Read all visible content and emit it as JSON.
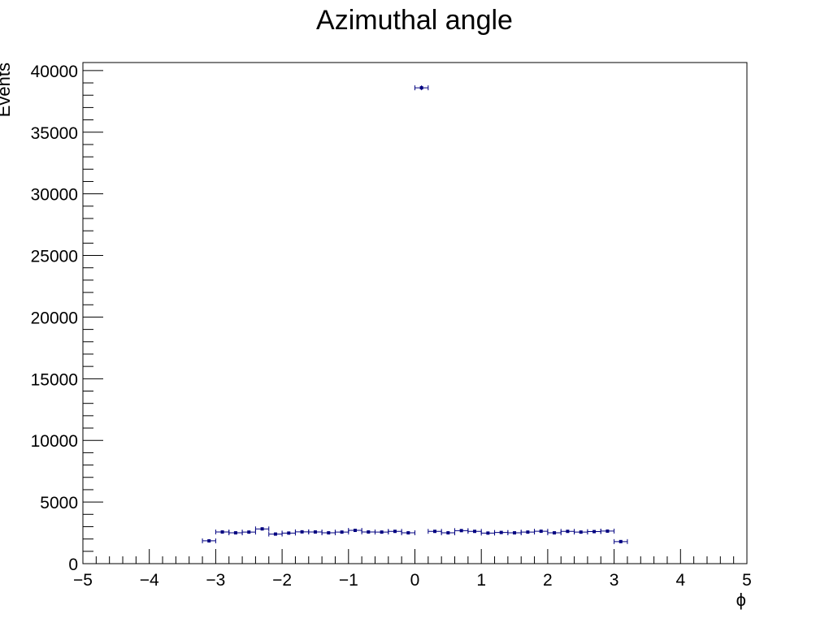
{
  "chart_data": {
    "type": "scatter",
    "title": "Azimuthal angle",
    "xlabel": "ϕ",
    "ylabel": "Events",
    "xlim": [
      -5,
      5
    ],
    "ylim": [
      0,
      40650
    ],
    "x_ticks": [
      -5,
      -4,
      -3,
      -2,
      -1,
      0,
      1,
      2,
      3,
      4,
      5
    ],
    "x_tick_labels": [
      "−5",
      "−4",
      "−3",
      "−2",
      "−1",
      "0",
      "1",
      "2",
      "3",
      "4",
      "5"
    ],
    "y_ticks": [
      0,
      5000,
      10000,
      15000,
      20000,
      25000,
      30000,
      35000,
      40000
    ],
    "y_tick_labels": [
      "0",
      "5000",
      "10000",
      "15000",
      "20000",
      "25000",
      "30000",
      "35000",
      "40000"
    ],
    "grid": false,
    "legend": "none",
    "marker_color": "#000080",
    "bin_width": 0.2,
    "x": [
      -3.1,
      -2.9,
      -2.7,
      -2.5,
      -2.3,
      -2.1,
      -1.9,
      -1.7,
      -1.5,
      -1.3,
      -1.1,
      -0.9,
      -0.7,
      -0.5,
      -0.3,
      -0.1,
      0.1,
      0.3,
      0.5,
      0.7,
      0.9,
      1.1,
      1.3,
      1.5,
      1.7,
      1.9,
      2.1,
      2.3,
      2.5,
      2.7,
      2.9,
      3.1
    ],
    "values": [
      1850,
      2570,
      2500,
      2560,
      2820,
      2400,
      2480,
      2580,
      2570,
      2500,
      2560,
      2700,
      2570,
      2560,
      2620,
      2500,
      38600,
      2620,
      2500,
      2680,
      2620,
      2480,
      2530,
      2500,
      2560,
      2630,
      2500,
      2620,
      2560,
      2600,
      2640,
      1790
    ],
    "errors": [
      43,
      51,
      50,
      51,
      53,
      49,
      50,
      51,
      51,
      50,
      51,
      52,
      51,
      51,
      51,
      50,
      196,
      51,
      50,
      52,
      51,
      50,
      50,
      50,
      51,
      51,
      50,
      51,
      51,
      51,
      51,
      42
    ]
  }
}
